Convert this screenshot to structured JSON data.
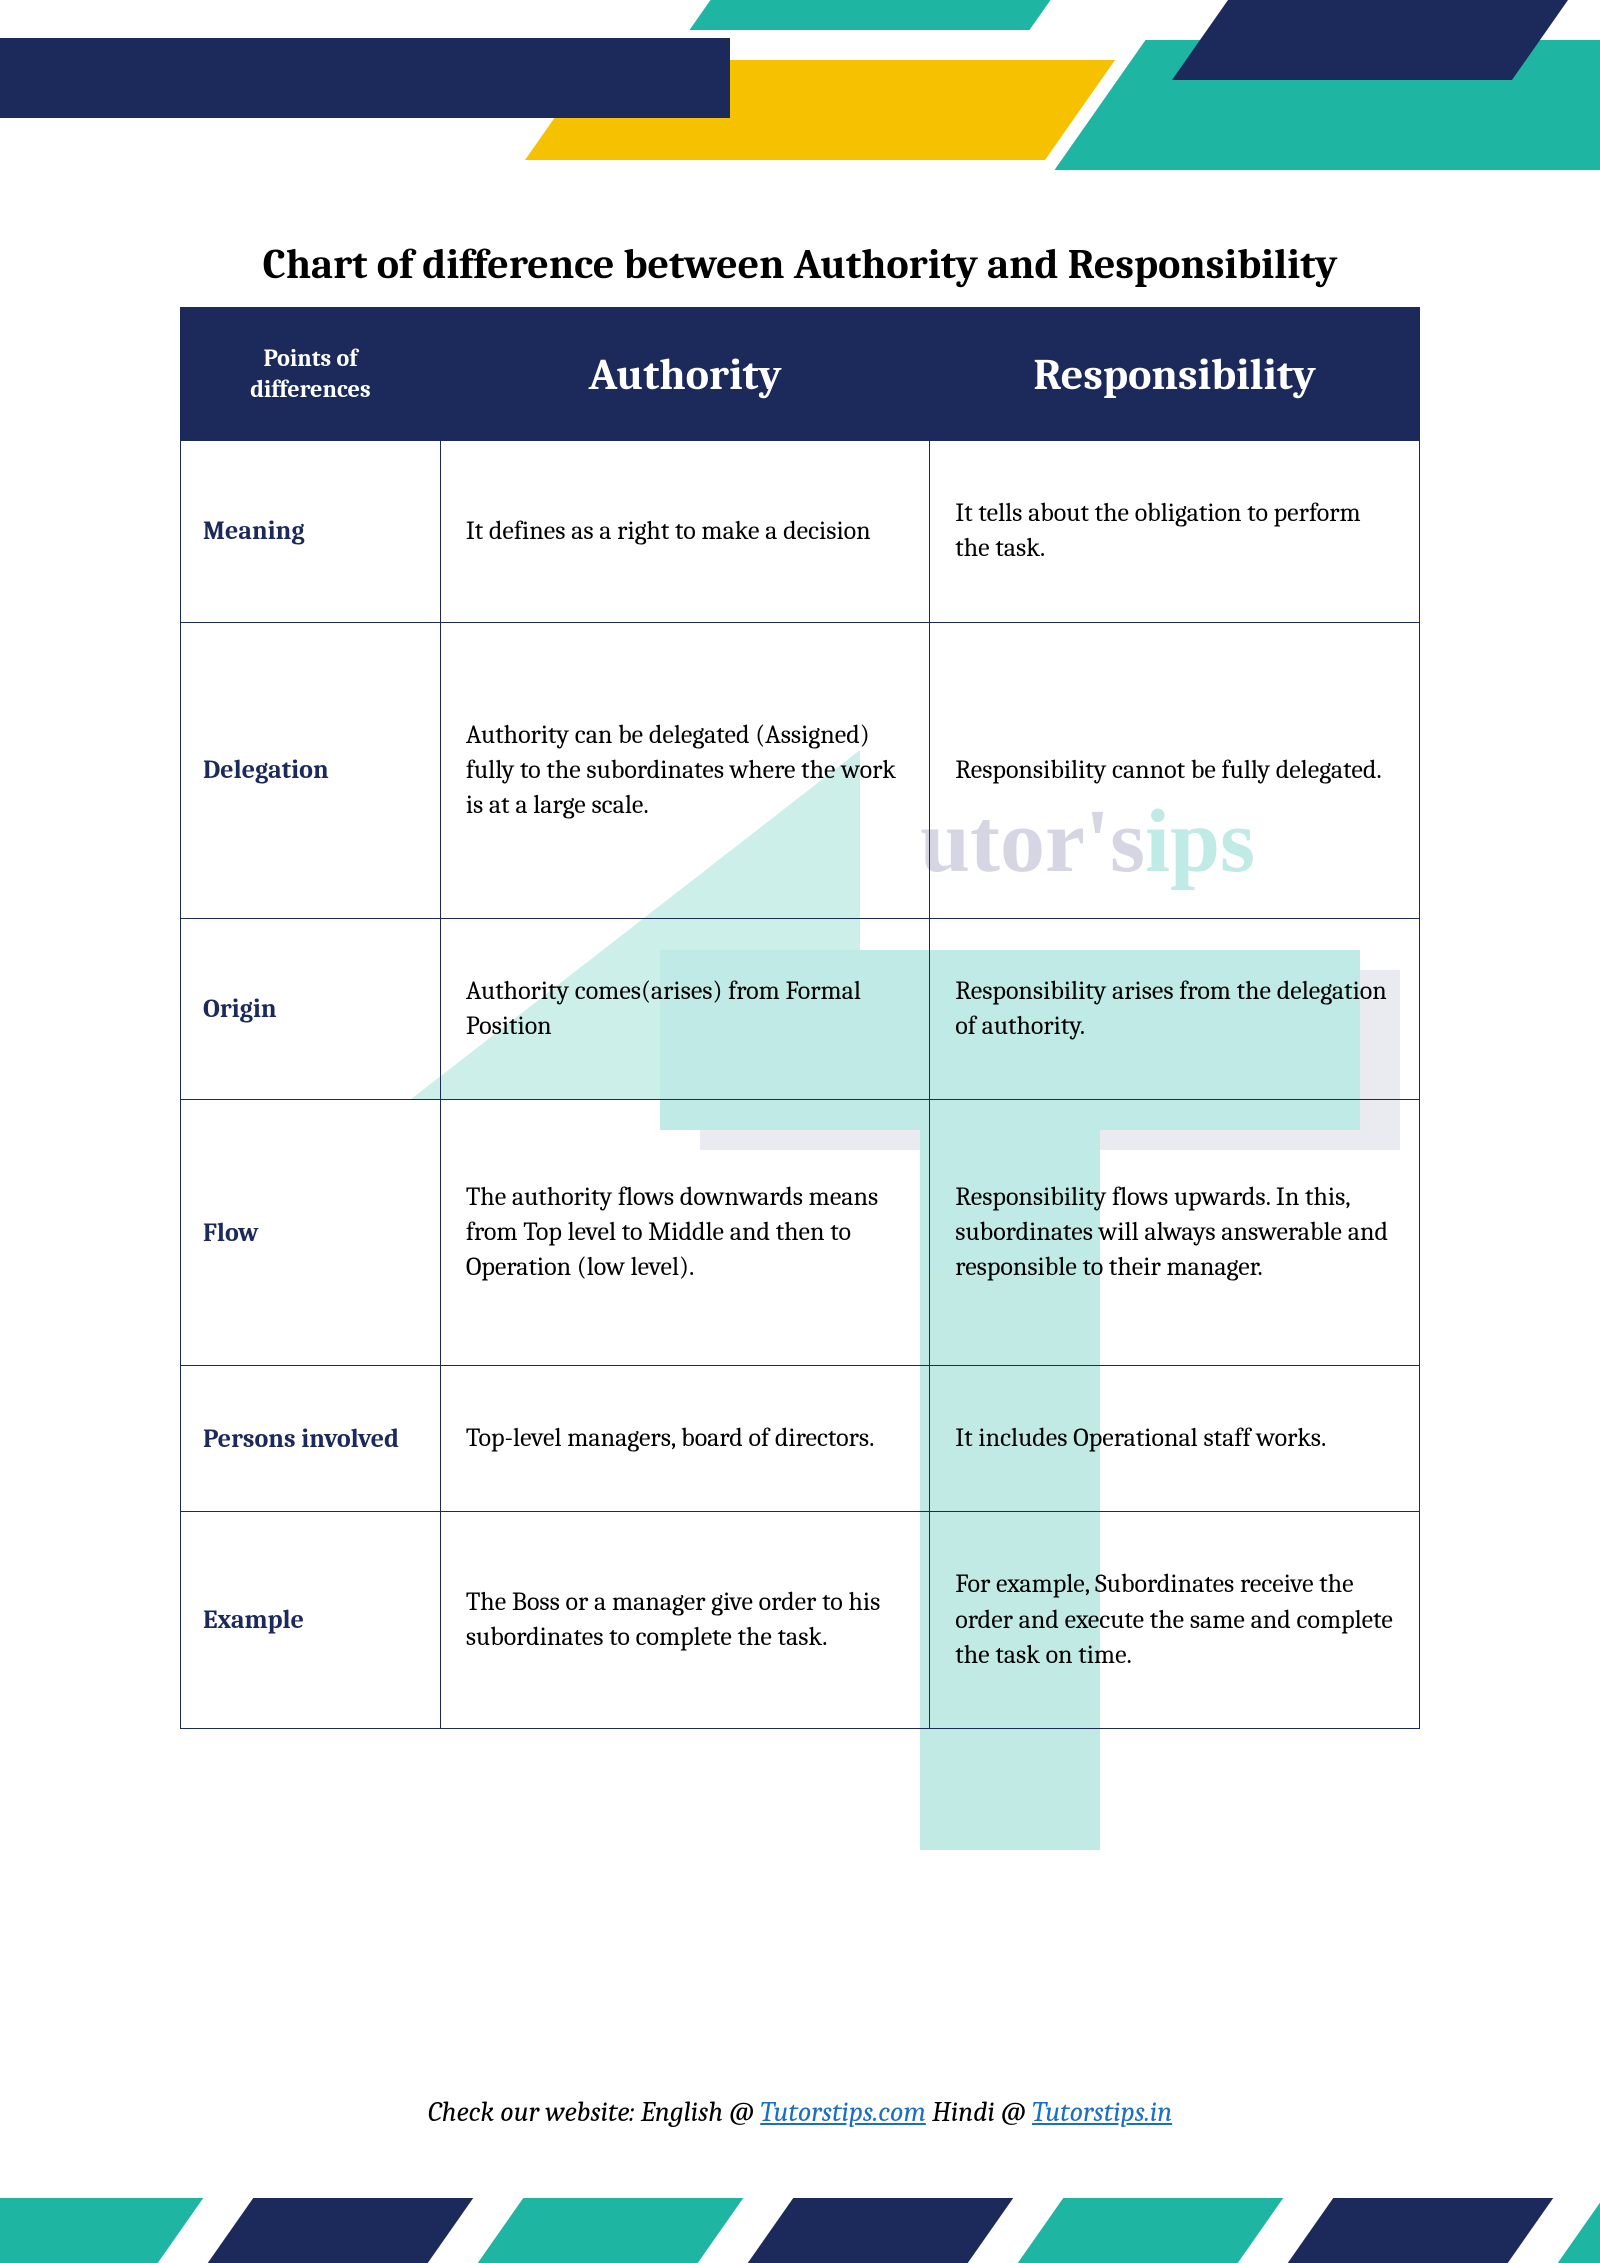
{
  "title": "Chart of difference between Authority and Responsibility",
  "columns": {
    "points": "Points of differences",
    "col1": "Authority",
    "col2": "Responsibility"
  },
  "rows": [
    {
      "label": "Meaning",
      "c1": "It defines as a right to make a decision",
      "c2": "It tells about the obligation to perform the task."
    },
    {
      "label": "Delegation",
      "c1": "Authority can be delegated (Assigned) fully to the subordinates where the work is at a large scale.",
      "c2": "Responsibility cannot be fully delegated."
    },
    {
      "label": "Origin",
      "c1": "Authority comes(arises) from Formal Position",
      "c2": "Responsibility arises from the delegation of authority."
    },
    {
      "label": "Flow",
      "c1": "The authority flows downwards means from Top level to Middle and then to Operation (low level).",
      "c2": "Responsibility flows upwards. In this, subordinates will always answerable and responsible to their manager."
    },
    {
      "label": "Persons involved",
      "c1": "Top-level managers, board of directors.",
      "c2": "It includes Operational staff works."
    },
    {
      "label": "Example",
      "c1": "The Boss or a manager give order to his subordinates to complete the task.",
      "c2": "For example, Subordinates receive the order and execute the same and complete the task on time."
    }
  ],
  "footer": {
    "prefix": "Check our website: English @ ",
    "link1_text": "Tutorstips.com",
    "middle": " Hindi @ ",
    "link2_text": "Tutorstips.in"
  },
  "watermark": {
    "part1": "utor's",
    "part2": "ips"
  },
  "colors": {
    "navy": "#1b2a5b",
    "teal": "#1fb5a3",
    "yellow": "#f6c200",
    "link": "#1b6fc2"
  }
}
